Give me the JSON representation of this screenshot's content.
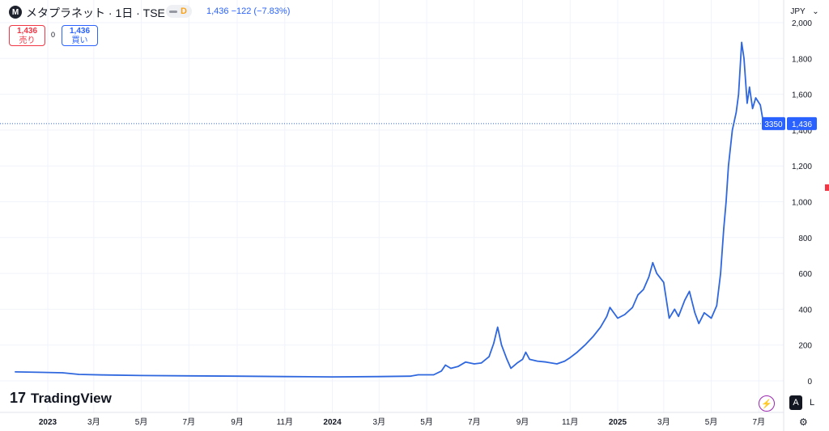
{
  "header": {
    "symbol_badge": "M",
    "title": "メタプラネット · 1日 · TSE",
    "exchange_badge": "D",
    "price_line": "1,436 −122 (−7.83%)",
    "sell_price": "1,436",
    "sell_label": "売り",
    "spread": "0",
    "buy_price": "1,436",
    "buy_label": "買い",
    "currency": "JPY",
    "currency_arrow": "⌄"
  },
  "branding": {
    "logo_mark": "17",
    "logo_text": "TradingView"
  },
  "footer_buttons": {
    "bolt": "⚡",
    "auto": "A",
    "log": "L",
    "settings": "⚙"
  },
  "colors": {
    "line": "#2f67de",
    "accent": "#2962ff",
    "sell": "#f23645",
    "grid": "#f0f3fa",
    "axis_text": "#131722"
  },
  "chart_data": {
    "type": "line",
    "title": "",
    "xlabel": "",
    "ylabel": "",
    "ylim": [
      0,
      2000
    ],
    "grid": true,
    "y_ticks": [
      0,
      200,
      400,
      600,
      800,
      1000,
      1200,
      1400,
      1600,
      1800,
      2000
    ],
    "y_tick_labels": [
      "0",
      "200",
      "400",
      "600",
      "800",
      "1,000",
      "1,200",
      "1,400",
      "1,600",
      "1,800",
      "2,000"
    ],
    "x_tick_labels": [
      {
        "label": "2023",
        "date": "2023-01-01",
        "bold": true
      },
      {
        "label": "3月",
        "date": "2023-03-01"
      },
      {
        "label": "5月",
        "date": "2023-05-01"
      },
      {
        "label": "7月",
        "date": "2023-07-01"
      },
      {
        "label": "9月",
        "date": "2023-09-01"
      },
      {
        "label": "11月",
        "date": "2023-11-01"
      },
      {
        "label": "2024",
        "date": "2024-01-01",
        "bold": true
      },
      {
        "label": "3月",
        "date": "2024-03-01"
      },
      {
        "label": "5月",
        "date": "2024-05-01"
      },
      {
        "label": "7月",
        "date": "2024-07-01"
      },
      {
        "label": "9月",
        "date": "2024-09-01"
      },
      {
        "label": "11月",
        "date": "2024-11-01"
      },
      {
        "label": "2025",
        "date": "2025-01-01",
        "bold": true
      },
      {
        "label": "3月",
        "date": "2025-03-01"
      },
      {
        "label": "5月",
        "date": "2025-05-01"
      },
      {
        "label": "7月",
        "date": "2025-07-01"
      }
    ],
    "last_price": 1436,
    "last_price_label": "1,436",
    "countdown_label": "3350",
    "series": [
      {
        "values": [
          [
            "2022-11-20",
            50
          ],
          [
            "2022-12-20",
            48
          ],
          [
            "2023-01-20",
            45
          ],
          [
            "2023-02-10",
            36
          ],
          [
            "2023-03-15",
            33
          ],
          [
            "2023-05-01",
            30
          ],
          [
            "2023-07-01",
            28
          ],
          [
            "2023-09-01",
            26
          ],
          [
            "2023-11-01",
            24
          ],
          [
            "2024-01-01",
            22
          ],
          [
            "2024-03-01",
            24
          ],
          [
            "2024-04-10",
            26
          ],
          [
            "2024-04-20",
            34
          ],
          [
            "2024-05-10",
            34
          ],
          [
            "2024-05-20",
            55
          ],
          [
            "2024-05-25",
            88
          ],
          [
            "2024-06-01",
            70
          ],
          [
            "2024-06-10",
            80
          ],
          [
            "2024-06-20",
            105
          ],
          [
            "2024-07-01",
            95
          ],
          [
            "2024-07-10",
            100
          ],
          [
            "2024-07-20",
            135
          ],
          [
            "2024-07-26",
            210
          ],
          [
            "2024-07-31",
            300
          ],
          [
            "2024-08-05",
            200
          ],
          [
            "2024-08-12",
            120
          ],
          [
            "2024-08-17",
            70
          ],
          [
            "2024-08-25",
            100
          ],
          [
            "2024-09-01",
            120
          ],
          [
            "2024-09-05",
            160
          ],
          [
            "2024-09-10",
            120
          ],
          [
            "2024-09-20",
            110
          ],
          [
            "2024-10-01",
            105
          ],
          [
            "2024-10-15",
            95
          ],
          [
            "2024-10-25",
            110
          ],
          [
            "2024-11-01",
            130
          ],
          [
            "2024-11-10",
            160
          ],
          [
            "2024-11-20",
            200
          ],
          [
            "2024-12-01",
            250
          ],
          [
            "2024-12-10",
            300
          ],
          [
            "2024-12-18",
            360
          ],
          [
            "2024-12-22",
            410
          ],
          [
            "2025-01-01",
            350
          ],
          [
            "2025-01-10",
            370
          ],
          [
            "2025-01-20",
            410
          ],
          [
            "2025-01-27",
            480
          ],
          [
            "2025-02-03",
            510
          ],
          [
            "2025-02-10",
            580
          ],
          [
            "2025-02-15",
            660
          ],
          [
            "2025-02-20",
            600
          ],
          [
            "2025-03-01",
            550
          ],
          [
            "2025-03-08",
            350
          ],
          [
            "2025-03-15",
            400
          ],
          [
            "2025-03-20",
            360
          ],
          [
            "2025-03-28",
            450
          ],
          [
            "2025-04-03",
            500
          ],
          [
            "2025-04-10",
            380
          ],
          [
            "2025-04-15",
            320
          ],
          [
            "2025-04-22",
            380
          ],
          [
            "2025-05-01",
            350
          ],
          [
            "2025-05-08",
            420
          ],
          [
            "2025-05-13",
            600
          ],
          [
            "2025-05-17",
            850
          ],
          [
            "2025-05-20",
            1000
          ],
          [
            "2025-05-23",
            1200
          ],
          [
            "2025-05-28",
            1400
          ],
          [
            "2025-06-02",
            1500
          ],
          [
            "2025-06-05",
            1600
          ],
          [
            "2025-06-09",
            1890
          ],
          [
            "2025-06-12",
            1800
          ],
          [
            "2025-06-16",
            1550
          ],
          [
            "2025-06-19",
            1640
          ],
          [
            "2025-06-23",
            1520
          ],
          [
            "2025-06-27",
            1580
          ],
          [
            "2025-07-03",
            1540
          ],
          [
            "2025-07-07",
            1436
          ]
        ]
      }
    ]
  }
}
